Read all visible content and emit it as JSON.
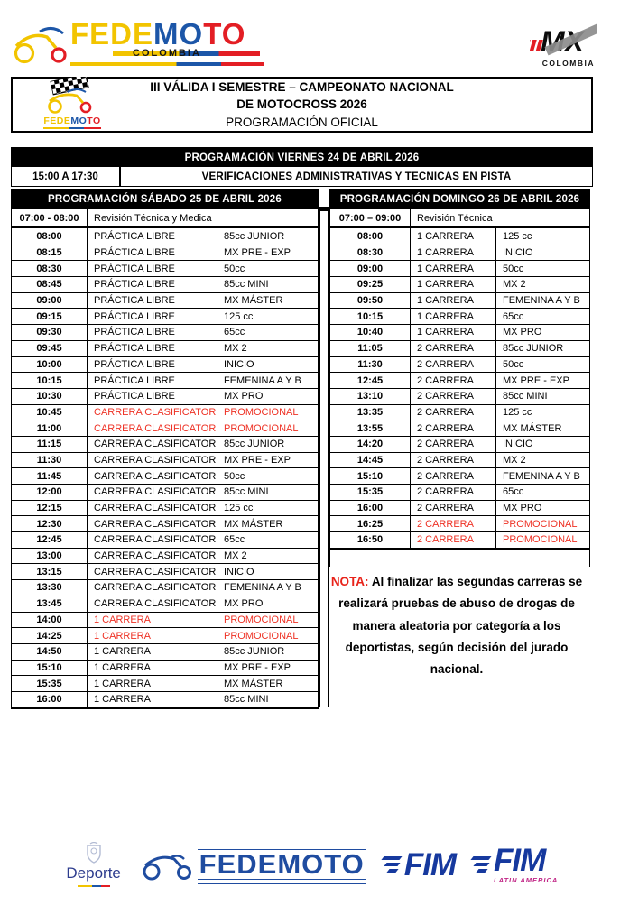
{
  "header": {
    "fedemoto": {
      "fede": "FEDE",
      "mo": "MO",
      "to": "TO",
      "colombia": "COLOMBIA"
    },
    "mx": {
      "letters": "MX",
      "colombia": "COLOMBIA"
    }
  },
  "title": {
    "line1": "III VÁLIDA I SEMESTRE – CAMPEONATO NACIONAL",
    "line2": "DE MOTOCROSS 2026",
    "line3": "PROGRAMACIÓN OFICIAL",
    "badge": {
      "fede": "FEDE",
      "mo": "MO",
      "to": "TO"
    }
  },
  "friday": {
    "header": "PROGRAMACIÓN VIERNES 24 DE ABRIL 2026",
    "time": "15:00 A 17:30",
    "activity": "VERIFICACIONES ADMINISTRATIVAS Y TECNICAS EN PISTA"
  },
  "saturday": {
    "header": "PROGRAMACIÓN SÁBADO 25 DE ABRIL 2026",
    "revision_time": "07:00 - 08:00",
    "revision_label": "Revisión Técnica y Medica",
    "rows": [
      {
        "time": "08:00",
        "activity": "PRÁCTICA LIBRE",
        "category": "85cc JUNIOR",
        "red": false
      },
      {
        "time": "08:15",
        "activity": "PRÁCTICA LIBRE",
        "category": "MX PRE - EXP",
        "red": false
      },
      {
        "time": "08:30",
        "activity": "PRÁCTICA LIBRE",
        "category": "50cc",
        "red": false
      },
      {
        "time": "08:45",
        "activity": "PRÁCTICA LIBRE",
        "category": "85cc MINI",
        "red": false
      },
      {
        "time": "09:00",
        "activity": "PRÁCTICA LIBRE",
        "category": "MX MÁSTER",
        "red": false
      },
      {
        "time": "09:15",
        "activity": "PRÁCTICA LIBRE",
        "category": "125 cc",
        "red": false
      },
      {
        "time": "09:30",
        "activity": "PRÁCTICA LIBRE",
        "category": "65cc",
        "red": false
      },
      {
        "time": "09:45",
        "activity": "PRÁCTICA LIBRE",
        "category": "MX 2",
        "red": false
      },
      {
        "time": "10:00",
        "activity": "PRÁCTICA LIBRE",
        "category": "INICIO",
        "red": false
      },
      {
        "time": "10:15",
        "activity": "PRÁCTICA LIBRE",
        "category": "FEMENINA A Y B",
        "red": false
      },
      {
        "time": "10:30",
        "activity": "PRÁCTICA LIBRE",
        "category": "MX PRO",
        "red": false
      },
      {
        "time": "10:45",
        "activity": "CARRERA CLASIFICATORIA",
        "category": "PROMOCIONAL",
        "red": true
      },
      {
        "time": "11:00",
        "activity": "CARRERA CLASIFICATORIA",
        "category": "PROMOCIONAL",
        "red": true
      },
      {
        "time": "11:15",
        "activity": "CARRERA CLASIFICATORIA",
        "category": "85cc JUNIOR",
        "red": false
      },
      {
        "time": "11:30",
        "activity": "CARRERA CLASIFICATORIA",
        "category": "MX PRE - EXP",
        "red": false
      },
      {
        "time": "11:45",
        "activity": "CARRERA CLASIFICATORIA",
        "category": "50cc",
        "red": false
      },
      {
        "time": "12:00",
        "activity": "CARRERA CLASIFICATORIA",
        "category": "85cc MINI",
        "red": false
      },
      {
        "time": "12:15",
        "activity": "CARRERA CLASIFICATORIA",
        "category": "125 cc",
        "red": false
      },
      {
        "time": "12:30",
        "activity": "CARRERA CLASIFICATORIA",
        "category": "MX MÁSTER",
        "red": false
      },
      {
        "time": "12:45",
        "activity": "CARRERA CLASIFICATORIA",
        "category": "65cc",
        "red": false
      },
      {
        "time": "13:00",
        "activity": "CARRERA CLASIFICATORIA",
        "category": "MX 2",
        "red": false
      },
      {
        "time": "13:15",
        "activity": "CARRERA CLASIFICATORIA",
        "category": "INICIO",
        "red": false
      },
      {
        "time": "13:30",
        "activity": "CARRERA CLASIFICATORIA",
        "category": "FEMENINA A Y B",
        "red": false
      },
      {
        "time": "13:45",
        "activity": "CARRERA CLASIFICATORIA",
        "category": "MX PRO",
        "red": false
      },
      {
        "time": "14:00",
        "activity": "1 CARRERA",
        "category": "PROMOCIONAL",
        "red": true
      },
      {
        "time": "14:25",
        "activity": "1 CARRERA",
        "category": "PROMOCIONAL",
        "red": true
      },
      {
        "time": "14:50",
        "activity": "1 CARRERA",
        "category": "85cc JUNIOR",
        "red": false
      },
      {
        "time": "15:10",
        "activity": "1 CARRERA",
        "category": "MX PRE - EXP",
        "red": false
      },
      {
        "time": "15:35",
        "activity": "1 CARRERA",
        "category": "MX MÁSTER",
        "red": false
      },
      {
        "time": "16:00",
        "activity": "1 CARRERA",
        "category": "85cc MINI",
        "red": false
      }
    ]
  },
  "sunday": {
    "header": "PROGRAMACIÓN DOMINGO 26 DE ABRIL 2026",
    "revision_time": "07:00 – 09:00",
    "revision_label": "Revisión Técnica",
    "rows": [
      {
        "time": "08:00",
        "activity": "1 CARRERA",
        "category": "125 cc",
        "red": false
      },
      {
        "time": "08:30",
        "activity": "1 CARRERA",
        "category": "INICIO",
        "red": false
      },
      {
        "time": "09:00",
        "activity": "1 CARRERA",
        "category": "50cc",
        "red": false
      },
      {
        "time": "09:25",
        "activity": "1 CARRERA",
        "category": "MX 2",
        "red": false
      },
      {
        "time": "09:50",
        "activity": "1 CARRERA",
        "category": "FEMENINA A Y B",
        "red": false
      },
      {
        "time": "10:15",
        "activity": "1 CARRERA",
        "category": "65cc",
        "red": false
      },
      {
        "time": "10:40",
        "activity": "1 CARRERA",
        "category": "MX PRO",
        "red": false
      },
      {
        "time": "11:05",
        "activity": "2 CARRERA",
        "category": "85cc JUNIOR",
        "red": false
      },
      {
        "time": "11:30",
        "activity": "2 CARRERA",
        "category": "50cc",
        "red": false
      },
      {
        "time": "12:45",
        "activity": "2 CARRERA",
        "category": "MX PRE - EXP",
        "red": false
      },
      {
        "time": "13:10",
        "activity": "2 CARRERA",
        "category": "85cc MINI",
        "red": false
      },
      {
        "time": "13:35",
        "activity": "2 CARRERA",
        "category": "125 cc",
        "red": false
      },
      {
        "time": "13:55",
        "activity": "2 CARRERA",
        "category": "MX MÁSTER",
        "red": false
      },
      {
        "time": "14:20",
        "activity": "2 CARRERA",
        "category": "INICIO",
        "red": false
      },
      {
        "time": "14:45",
        "activity": "2 CARRERA",
        "category": "MX 2",
        "red": false
      },
      {
        "time": "15:10",
        "activity": "2 CARRERA",
        "category": "FEMENINA A Y B",
        "red": false
      },
      {
        "time": "15:35",
        "activity": "2 CARRERA",
        "category": "65cc",
        "red": false
      },
      {
        "time": "16:00",
        "activity": "2 CARRERA",
        "category": "MX PRO",
        "red": false
      },
      {
        "time": "16:25",
        "activity": "2 CARRERA",
        "category": "PROMOCIONAL",
        "red": true
      },
      {
        "time": "16:50",
        "activity": "2 CARRERA",
        "category": "PROMOCIONAL",
        "red": true
      }
    ]
  },
  "note": {
    "label": "NOTA:",
    "text": "Al finalizar las segundas carreras se realizará pruebas de abuso de drogas de manera aleatoria por categoría a los deportistas, según decisión del jurado nacional."
  },
  "footer": {
    "deporte": "Deporte",
    "fedemoto": "FEDEMOTO",
    "fim_a": "FIM",
    "fim_b": "FIM",
    "latin_america": "LATIN AMERICA"
  },
  "colors": {
    "row_red": "#ee3124",
    "nota_red": "#e8231a",
    "bar_black": "#000000",
    "logo_yellow": "#f2c400",
    "logo_blue": "#1c56a8",
    "logo_red": "#e31e24",
    "footer_blue": "#1f4ca0",
    "fim_blue": "#16399e",
    "latin_magenta": "#c02485",
    "deporte_navy": "#2d3c8e"
  }
}
